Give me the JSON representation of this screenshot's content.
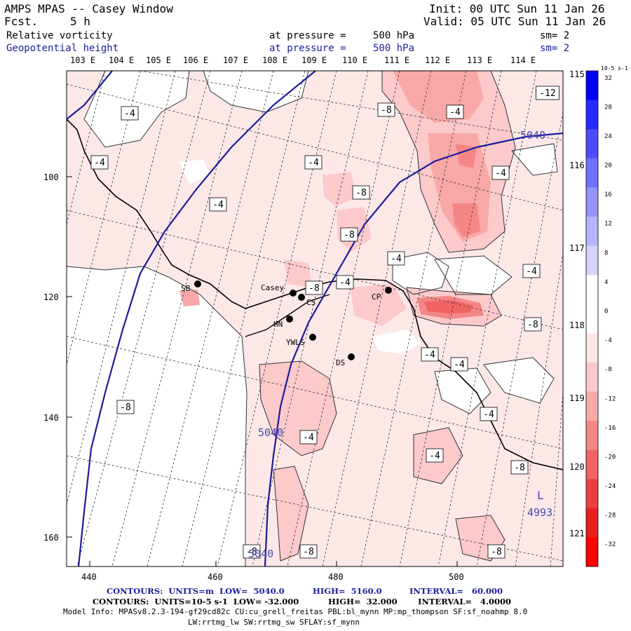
{
  "header": {
    "title": "AMPS MPAS -- Casey Window",
    "fcst_label": "Fcst.",
    "fcst_value": "5 h",
    "init": "Init: 00 UTC Sun 11 Jan 26",
    "valid": "Valid: 05 UTC Sun 11 Jan 26"
  },
  "fields": [
    {
      "name": "Relative vorticity",
      "pressure_label": "at pressure =",
      "pressure": "500 hPa",
      "sm": "sm= 2",
      "color": "#000000"
    },
    {
      "name": "Geopotential height",
      "pressure_label": "at pressure =",
      "pressure": "500 hPa",
      "sm": "sm= 2",
      "color": "#1c1c9c"
    }
  ],
  "map": {
    "top_lon_labels": [
      "103 E",
      "104 E",
      "105 E",
      "106 E",
      "107 E",
      "108 E",
      "109 E",
      "110 E",
      "111 E",
      "112 E",
      "113 E",
      "114 E"
    ],
    "right_lat_labels": [
      "115 E",
      "116 E",
      "117 E",
      "118 E",
      "119 E",
      "120 E",
      "121 E"
    ],
    "x_ticks": [
      "440",
      "460",
      "480",
      "500"
    ],
    "y_ticks": [
      "100",
      "120",
      "140",
      "160"
    ],
    "stations": [
      {
        "name": "SB"
      },
      {
        "name": "Casey"
      },
      {
        "name": "CS"
      },
      {
        "name": "HN"
      },
      {
        "name": "YWLS"
      },
      {
        "name": "DS"
      },
      {
        "name": "CP"
      }
    ],
    "vort_labels": [
      "-4",
      "-4",
      "-4",
      "-4",
      "-8",
      "-12",
      "-8",
      "-4",
      "-4",
      "-4",
      "-4",
      "-8",
      "-4",
      "-8",
      "-8",
      "-4",
      "-4",
      "-8",
      "-4",
      "-4",
      "-8",
      "-4",
      "-8",
      "-8",
      "-8"
    ],
    "height_labels": [
      "5040",
      "5040",
      "5040"
    ],
    "low_label": "L",
    "low_value": "4993"
  },
  "colorbar": {
    "units": "10-5 s-1",
    "ticks": [
      "32",
      "28",
      "24",
      "20",
      "16",
      "12",
      "8",
      "4",
      "0",
      "-4",
      "-8",
      "-12",
      "-16",
      "-20",
      "-24",
      "-28",
      "-32"
    ],
    "colors": [
      "#0000ff",
      "#2828ff",
      "#4c4cff",
      "#7070ff",
      "#9494ff",
      "#b4b4ff",
      "#d4d4ff",
      "#ffffff",
      "#ffffff",
      "#fde8e8",
      "#fccaca",
      "#f9a8a8",
      "#f58686",
      "#f16464",
      "#ec4040",
      "#e62020",
      "#ff0000"
    ]
  },
  "footer": {
    "line1_contours": "CONTOURS:  UNITS=m  LOW=  5040.0",
    "line1_high": "HIGH=  5160.0",
    "line1_interval": "INTERVAL=   60.000",
    "line2_contours": "CONTOURS:  UNITS=10-5 s-1  LOW= -32.000",
    "line2_high": "HIGH=  32.000",
    "line2_interval": "INTERVAL=   4.0000",
    "line3": "Model Info: MPASv8.2.3-194-gf29cd82c CU:cu_grell_freitas PBL:bl_mynn MP:mp_thompson SF:sf_noahmp 8.0",
    "line4": "LW:rrtmg_lw SW:rrtmg_sw SFLAY:sf_mynn"
  }
}
